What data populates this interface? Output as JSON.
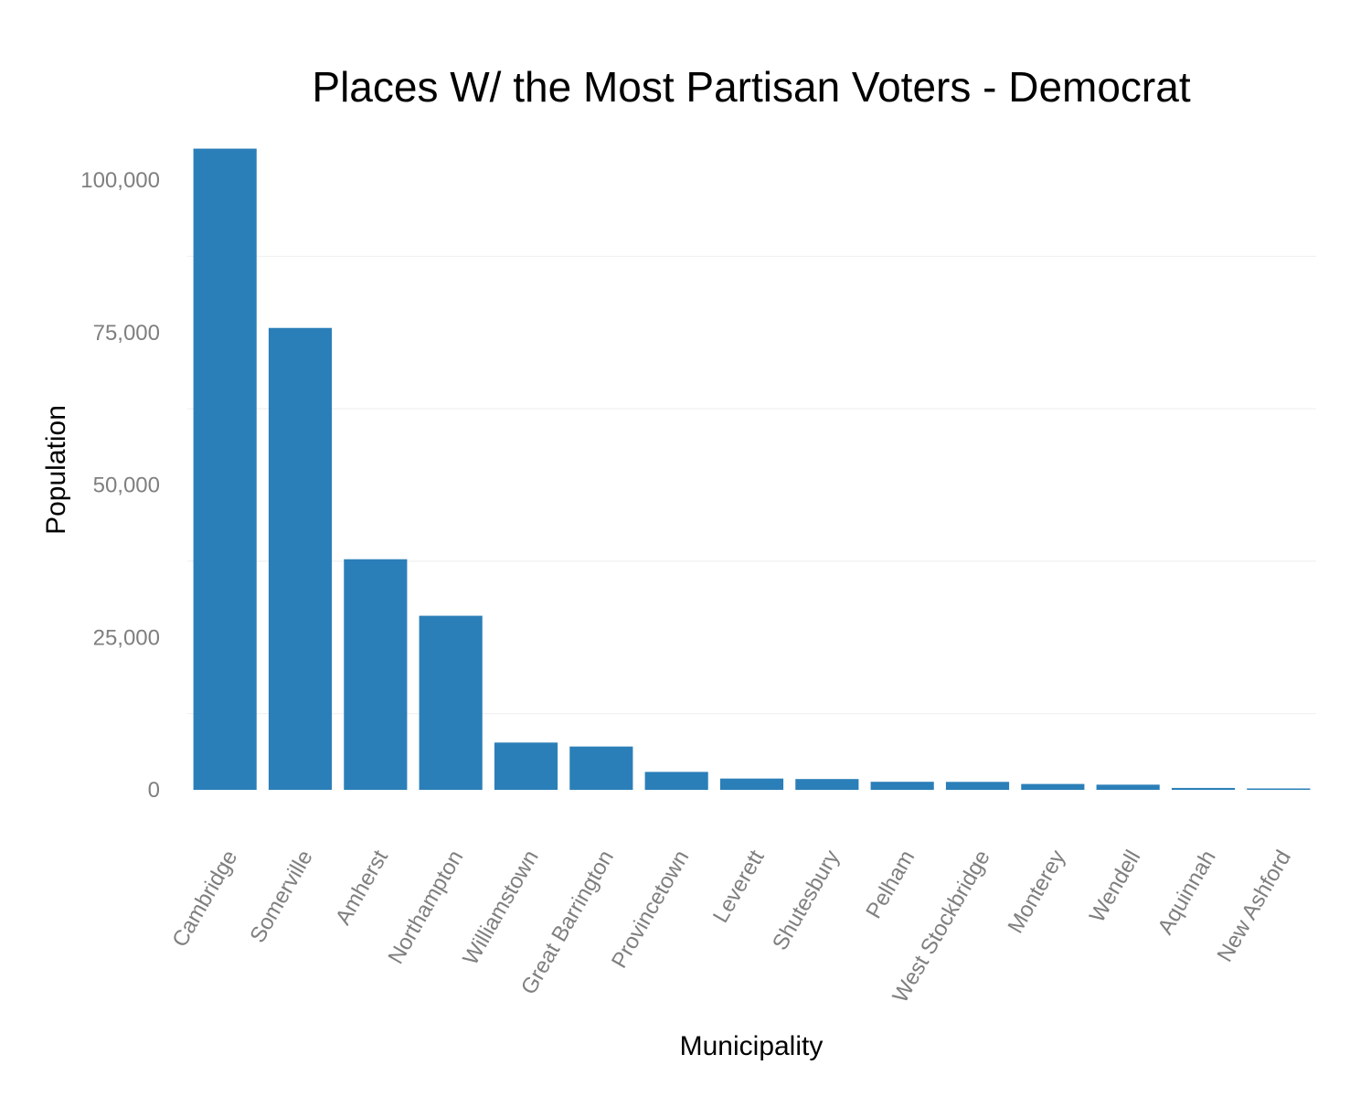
{
  "chart_data": {
    "type": "bar",
    "title": "Places W/ the Most Partisan Voters - Democrat",
    "xlabel": "Municipality",
    "ylabel": "Population",
    "categories": [
      "Cambridge",
      "Somerville",
      "Amherst",
      "Northampton",
      "Williamstown",
      "Great Barrington",
      "Provincetown",
      "Leverett",
      "Shutesbury",
      "Pelham",
      "West Stockbridge",
      "Monterey",
      "Wendell",
      "Aquinnah",
      "New Ashford"
    ],
    "values": [
      105162,
      75754,
      37819,
      28549,
      7754,
      7104,
      2942,
      1851,
      1771,
      1321,
      1306,
      961,
      848,
      311,
      228
    ],
    "ylim": [
      -5300,
      106800
    ],
    "yticks": [
      0,
      25000,
      50000,
      75000,
      100000
    ],
    "ytick_labels": [
      "0",
      "25,000",
      "50,000",
      "75,000",
      "100,000"
    ],
    "grid": true,
    "bar_color": "#2b7fb8",
    "legend": "none"
  }
}
